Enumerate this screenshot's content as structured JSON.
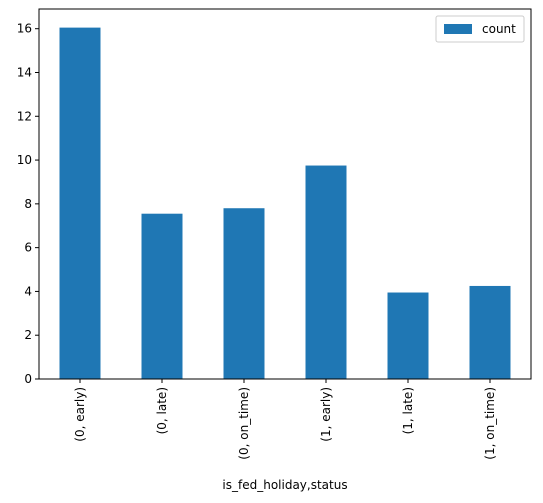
{
  "chart_data": {
    "type": "bar",
    "categories": [
      "(0, early)",
      "(0, late)",
      "(0, on_time)",
      "(1, early)",
      "(1, late)",
      "(1, on_time)"
    ],
    "series": [
      {
        "name": "count",
        "values": [
          16.05,
          7.55,
          7.8,
          9.75,
          3.95,
          4.25
        ]
      }
    ],
    "xlabel": "is_fed_holiday,status",
    "ylabel": "",
    "ylim": [
      0,
      16.9
    ],
    "yticks": [
      0,
      2,
      4,
      6,
      8,
      10,
      12,
      14,
      16
    ],
    "grid": false,
    "legend_position": "top-right",
    "bar_color": "#1f77b4"
  }
}
